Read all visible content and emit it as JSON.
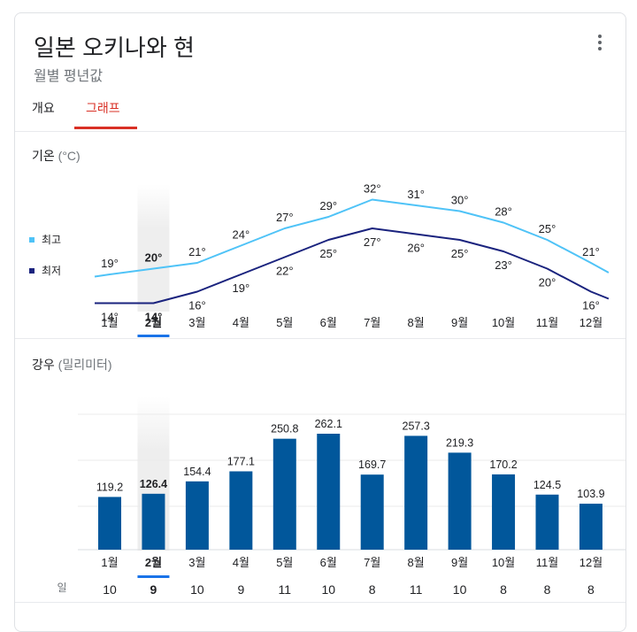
{
  "header": {
    "title": "일본 오키나와 현",
    "subtitle": "월별 평년값"
  },
  "tabs": [
    {
      "label": "개요",
      "active": false
    },
    {
      "label": "그래프",
      "active": true
    }
  ],
  "temperature": {
    "title": "기온",
    "unit": "(°C)",
    "legend": [
      {
        "label": "최고",
        "color": "#4fc3f7"
      },
      {
        "label": "최저",
        "color": "#1a237e"
      }
    ]
  },
  "precipitation": {
    "title": "강우",
    "unit": "(밀리미터)",
    "days_label": "일"
  },
  "selected_month_index": 1,
  "months": [
    "1월",
    "2월",
    "3월",
    "4월",
    "5월",
    "6월",
    "7월",
    "8월",
    "9월",
    "10월",
    "11월",
    "12월"
  ],
  "chart_data": [
    {
      "type": "line",
      "title": "기온 (°C)",
      "categories": [
        "1월",
        "2월",
        "3월",
        "4월",
        "5월",
        "6월",
        "7월",
        "8월",
        "9월",
        "10월",
        "11월",
        "12월"
      ],
      "series": [
        {
          "name": "최고",
          "color": "#4fc3f7",
          "values": [
            19,
            20,
            21,
            24,
            27,
            29,
            32,
            31,
            30,
            28,
            25,
            21
          ],
          "labels": [
            "19°",
            "20°",
            "21°",
            "24°",
            "27°",
            "29°",
            "32°",
            "31°",
            "30°",
            "28°",
            "25°",
            "21°"
          ]
        },
        {
          "name": "최저",
          "color": "#1a237e",
          "values": [
            14,
            14,
            16,
            19,
            22,
            25,
            27,
            26,
            25,
            23,
            20,
            16
          ],
          "labels": [
            "14°",
            "14°",
            "16°",
            "19°",
            "22°",
            "25°",
            "27°",
            "26°",
            "25°",
            "23°",
            "20°",
            "16°"
          ]
        }
      ]
    },
    {
      "type": "bar",
      "title": "강우 (밀리미터)",
      "categories": [
        "1월",
        "2월",
        "3월",
        "4월",
        "5월",
        "6월",
        "7월",
        "8월",
        "9월",
        "10월",
        "11월",
        "12월"
      ],
      "values": [
        119.2,
        126.4,
        154.4,
        177.1,
        250.8,
        262.1,
        169.7,
        257.3,
        219.3,
        170.2,
        124.5,
        103.9
      ],
      "labels": [
        "119.2",
        "126.4",
        "154.4",
        "177.1",
        "250.8",
        "262.1",
        "169.7",
        "257.3",
        "219.3",
        "170.2",
        "124.5",
        "103.9"
      ],
      "bar_color": "#01579b",
      "ylim": [
        0,
        300
      ],
      "rain_days": [
        "10",
        "9",
        "10",
        "9",
        "11",
        "10",
        "8",
        "11",
        "10",
        "8",
        "8",
        "8"
      ]
    }
  ]
}
